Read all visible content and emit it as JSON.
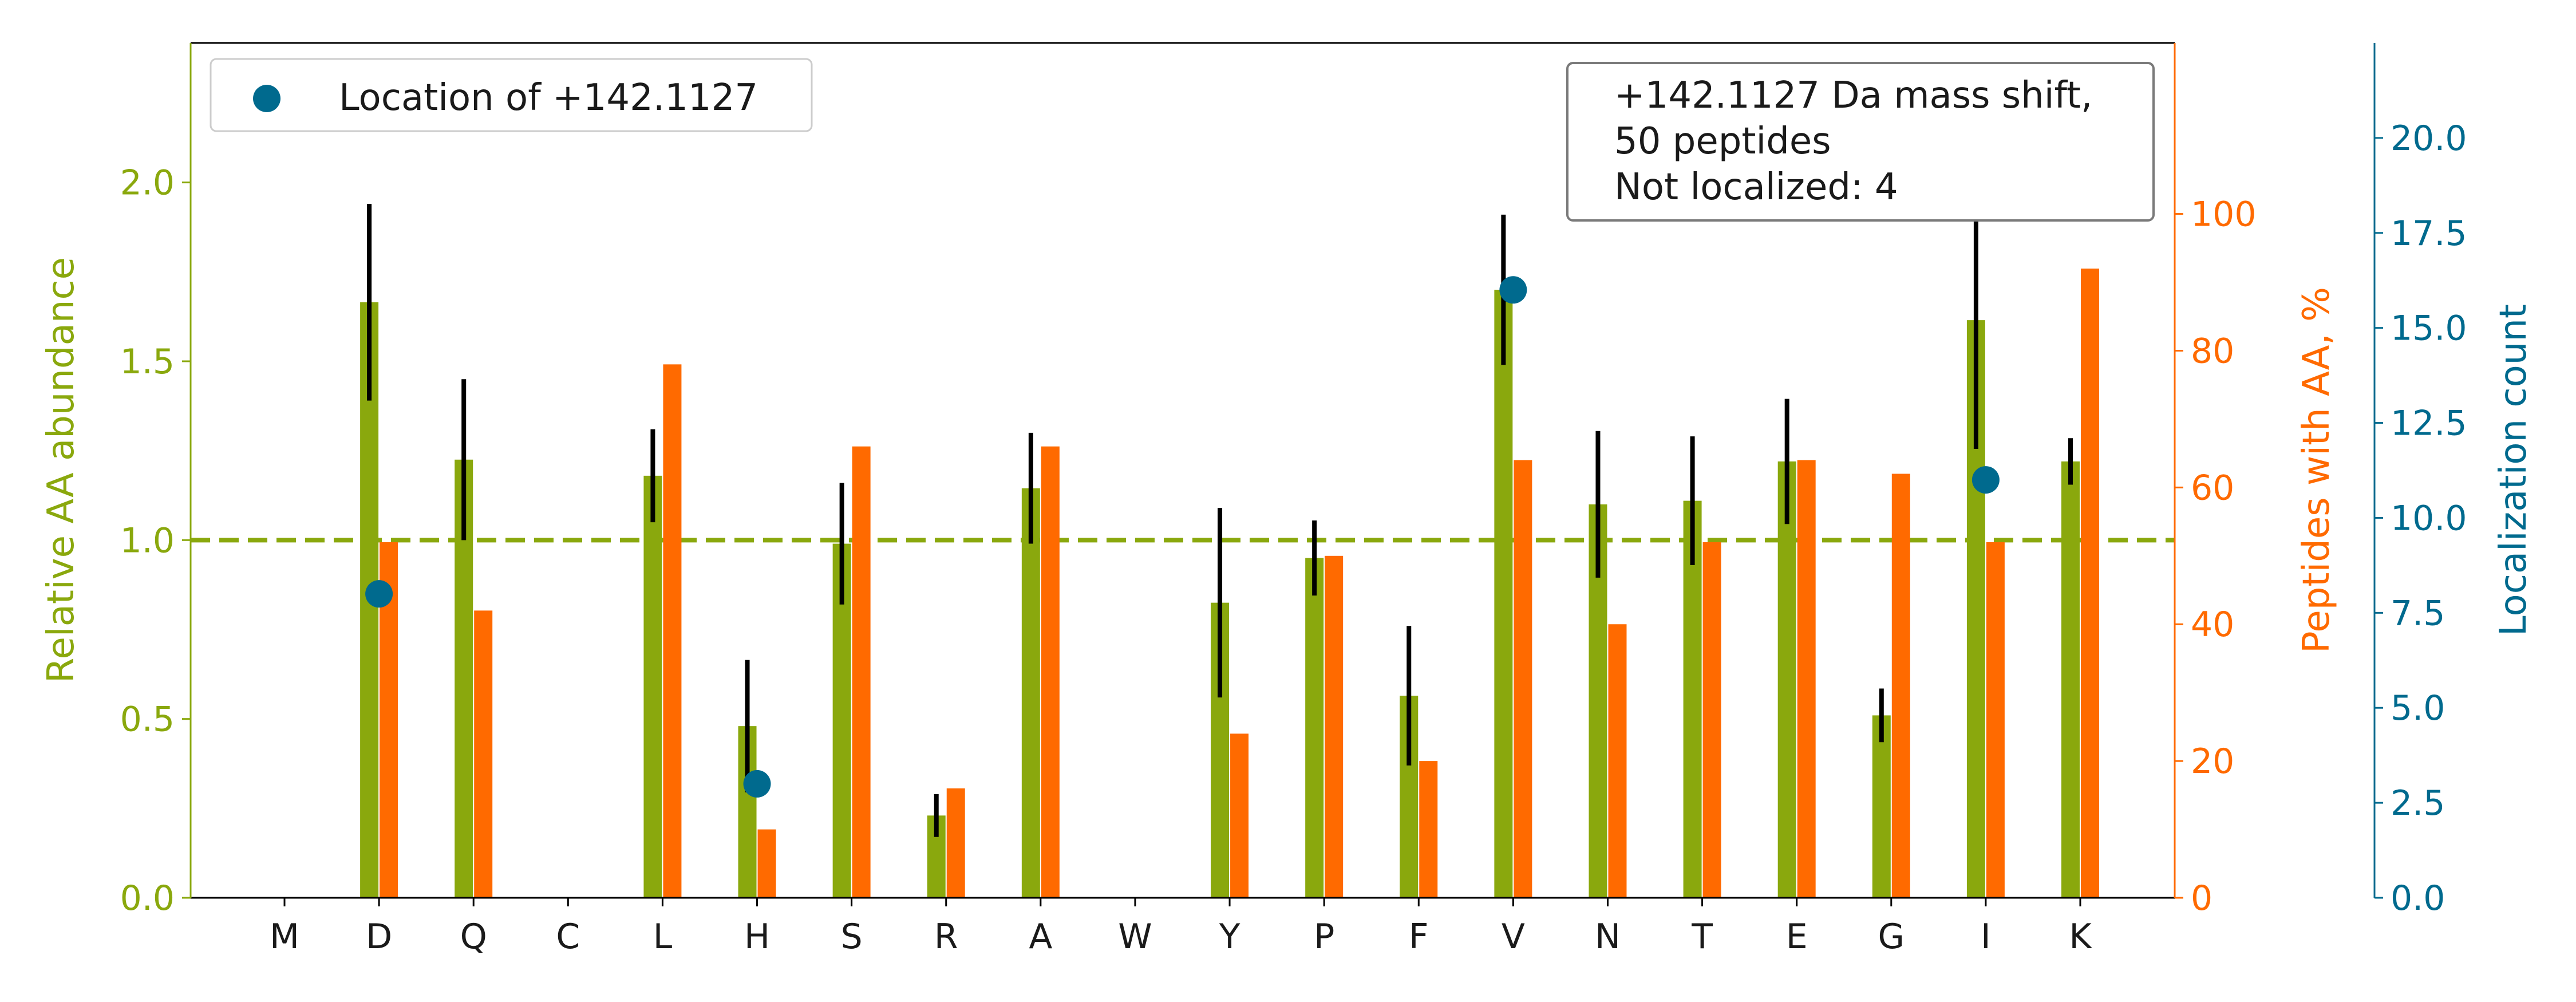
{
  "chart_data": {
    "type": "bar",
    "categories": [
      "M",
      "D",
      "Q",
      "C",
      "L",
      "H",
      "S",
      "R",
      "A",
      "W",
      "Y",
      "P",
      "F",
      "V",
      "N",
      "T",
      "E",
      "G",
      "I",
      "K"
    ],
    "series": [
      {
        "axis": "left",
        "color": "#8aa80d",
        "values": [
          0,
          1.665,
          1.225,
          0,
          1.18,
          0.48,
          0.99,
          0.23,
          1.145,
          0,
          0.825,
          0.95,
          0.565,
          1.7,
          1.1,
          1.11,
          1.22,
          0.51,
          1.615,
          1.22
        ],
        "error": [
          0,
          0.275,
          0.225,
          0,
          0.13,
          0.185,
          0.17,
          0.06,
          0.155,
          0,
          0.265,
          0.105,
          0.195,
          0.21,
          0.205,
          0.18,
          0.175,
          0.075,
          0.36,
          0.065
        ]
      },
      {
        "axis": "right",
        "color": "#ff6a00",
        "values": [
          0,
          52,
          42,
          0,
          78,
          10,
          66,
          16,
          66,
          0,
          24,
          50,
          20,
          64,
          40,
          52,
          64,
          62,
          52,
          92
        ]
      },
      {
        "axis": "far-right",
        "color": "#006a8e",
        "name": "Location of +142.1127",
        "type": "scatter",
        "points": [
          {
            "category": "D",
            "value": 8
          },
          {
            "category": "H",
            "value": 3
          },
          {
            "category": "V",
            "value": 16
          },
          {
            "category": "I",
            "value": 11
          }
        ]
      }
    ],
    "ylabel": "Relative AA abundance",
    "ylim": [
      0,
      2.39
    ],
    "yticks": [
      "0.0",
      "0.5",
      "1.0",
      "1.5",
      "2.0"
    ],
    "y2label": "Peptides with AA, %",
    "y2lim": [
      0,
      125
    ],
    "y2ticks": [
      "0",
      "20",
      "40",
      "60",
      "80",
      "100"
    ],
    "y3label": "Localization count",
    "y3lim": [
      0,
      22.5
    ],
    "y3ticks": [
      "0.0",
      "2.5",
      "5.0",
      "7.5",
      "10.0",
      "12.5",
      "15.0",
      "17.5",
      "20.0"
    ],
    "reference_line": 1.0,
    "legend": {
      "label": "Location of +142.1127",
      "position": "top-left"
    },
    "annotation": {
      "lines": [
        "+142.1127 Da mass shift,",
        "50 peptides",
        "Not localized: 4"
      ],
      "position": "top-right"
    }
  }
}
